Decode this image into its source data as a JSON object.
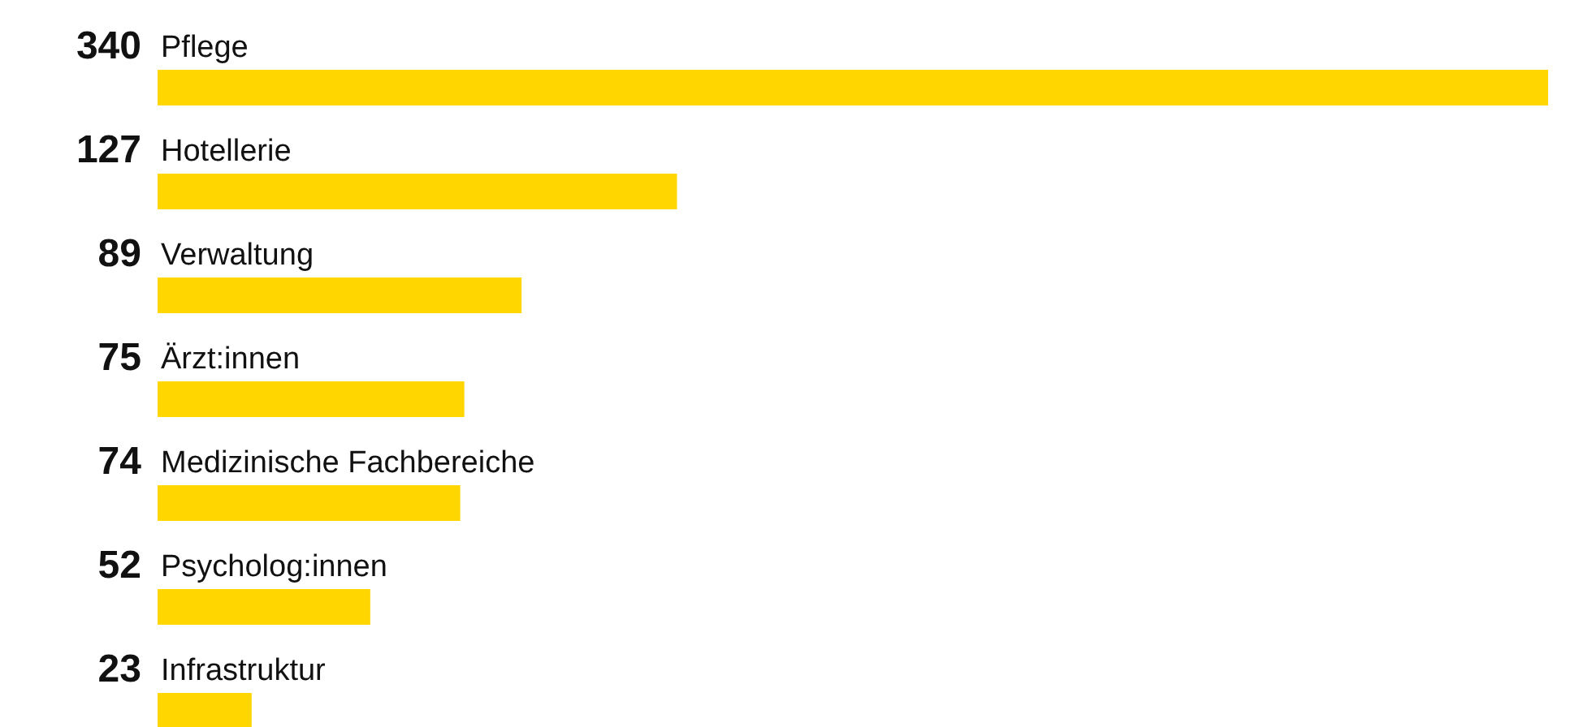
{
  "chart_data": {
    "type": "bar",
    "orientation": "horizontal",
    "data_labels": true,
    "color": "#ffd600",
    "categories": [
      "Pflege",
      "Hotellerie",
      "Verwaltung",
      "Ärzt:innen",
      "Medizinische Fachbereiche",
      "Psycholog:innen",
      "Infrastruktur"
    ],
    "values": [
      340,
      127,
      89,
      75,
      74,
      52,
      23
    ]
  }
}
